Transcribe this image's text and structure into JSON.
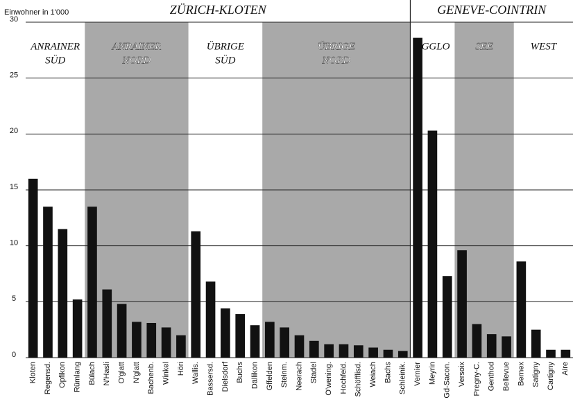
{
  "chart_data": {
    "type": "bar",
    "y_label": "Einwohner in 1'000",
    "categories": [
      "Kloten",
      "Regensd.",
      "Opfikon",
      "Rümlang",
      "Bülach",
      "N'Hasli",
      "O'glatt",
      "N'glatt",
      "Bachenb.",
      "Winkel",
      "Höri",
      "Wallis.",
      "Bassersd.",
      "Dielsdorf",
      "Buchs",
      "Dällikon",
      "Gffelden",
      "Steinm.",
      "Neerach",
      "Stadel",
      "O'wening.",
      "Hochfeld.",
      "Schöfflisd.",
      "Weiach",
      "Bachs",
      "Schleinik.",
      "Vernier",
      "Meyrin",
      "Gd-Sacon.",
      "Versoix",
      "Pregny-C.",
      "Genthod",
      "Bellevue",
      "Bernex",
      "Satigny",
      "Cartigny",
      "Aire"
    ],
    "values": [
      16.0,
      13.5,
      11.5,
      5.2,
      13.5,
      6.1,
      4.8,
      3.2,
      3.1,
      2.7,
      2.0,
      11.3,
      6.8,
      4.4,
      3.9,
      2.9,
      3.2,
      2.7,
      2.0,
      1.5,
      1.2,
      1.2,
      1.1,
      0.9,
      0.7,
      0.6,
      28.6,
      20.3,
      7.3,
      9.6,
      3.0,
      2.1,
      1.9,
      8.6,
      2.5,
      0.7,
      0.7
    ],
    "color": "#111111",
    "ylim": [
      0,
      30
    ],
    "yticks": [
      0,
      5,
      10,
      15,
      20,
      25,
      30
    ],
    "grid": true,
    "groups": [
      {
        "label": "ZÜRICH-KLOTEN",
        "first": "Kloten",
        "last": "Schleinik."
      },
      {
        "label": "GENEVE-COINTRIN",
        "first": "Vernier",
        "last": "Aire"
      }
    ],
    "regions": [
      {
        "label": [
          "ANRAINER",
          "SÜD"
        ],
        "first": "Kloten",
        "last": "Rümlang",
        "shaded": false
      },
      {
        "label": [
          "ANRAINER",
          "NORD"
        ],
        "first": "Bülach",
        "last": "Höri",
        "shaded": true
      },
      {
        "label": [
          "ÜBRIGE",
          "SÜD"
        ],
        "first": "Wallis.",
        "last": "Dällikon",
        "shaded": false
      },
      {
        "label": [
          "ÜBRIGE",
          "NORD"
        ],
        "first": "Gffelden",
        "last": "Schleinik.",
        "shaded": true
      },
      {
        "label": [
          "AGGLO"
        ],
        "first": "Vernier",
        "last": "Gd-Sacon.",
        "shaded": false
      },
      {
        "label": [
          "SEE"
        ],
        "first": "Versoix",
        "last": "Bellevue",
        "shaded": true
      },
      {
        "label": [
          "WEST"
        ],
        "first": "Bernex",
        "last": "Aire",
        "shaded": false
      }
    ]
  }
}
